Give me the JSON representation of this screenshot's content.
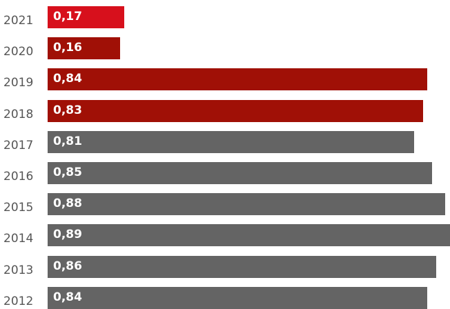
{
  "chart_data": {
    "type": "bar",
    "orientation": "horizontal",
    "categories": [
      "2021",
      "2020",
      "2019",
      "2018",
      "2017",
      "2016",
      "2015",
      "2014",
      "2013",
      "2012"
    ],
    "values": [
      0.17,
      0.16,
      0.84,
      0.83,
      0.81,
      0.85,
      0.88,
      0.89,
      0.86,
      0.84
    ],
    "value_labels": [
      "0,17",
      "0,16",
      "0,84",
      "0,83",
      "0,81",
      "0,85",
      "0,88",
      "0,89",
      "0,86",
      "0,84"
    ],
    "bar_colors": [
      "#d7101c",
      "#a01006",
      "#a01006",
      "#a01006",
      "#646464",
      "#646464",
      "#646464",
      "#646464",
      "#646464",
      "#646464"
    ],
    "xlim": [
      0,
      0.89
    ],
    "grid": false,
    "legend": "none"
  }
}
